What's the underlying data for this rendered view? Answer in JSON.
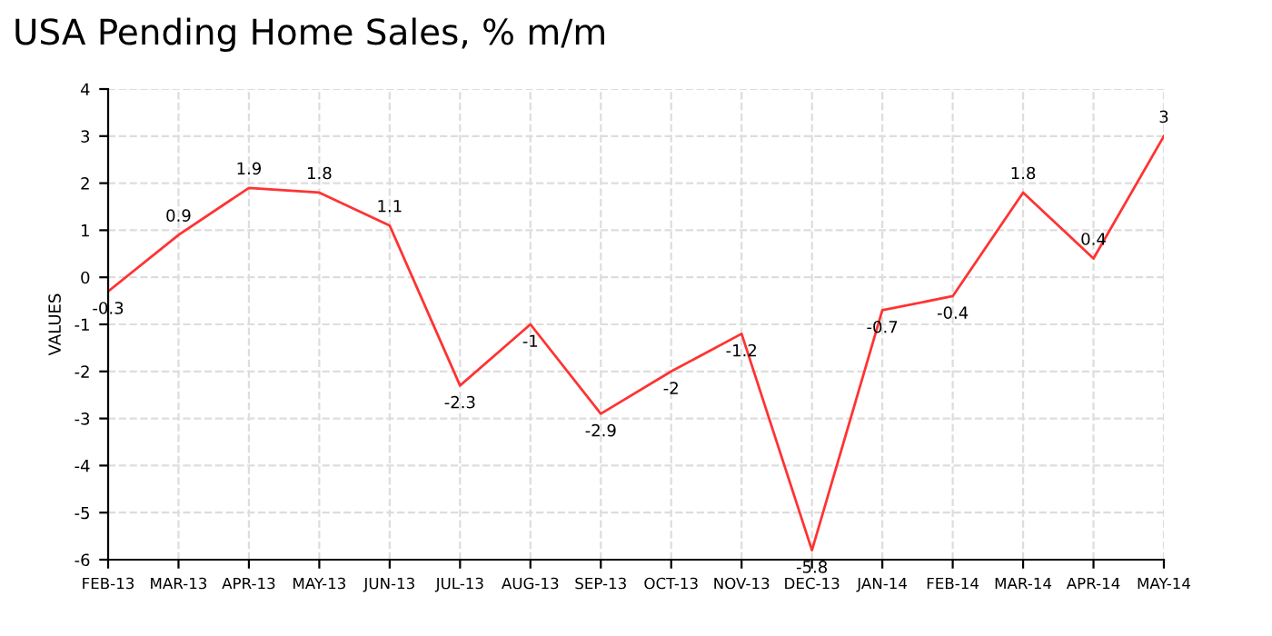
{
  "chart_data": {
    "type": "line",
    "title": "USA Pending Home Sales, % m/m",
    "ylabel": "VALUES",
    "categories": [
      "FEB-13",
      "MAR-13",
      "APR-13",
      "MAY-13",
      "JUN-13",
      "JUL-13",
      "AUG-13",
      "SEP-13",
      "OCT-13",
      "NOV-13",
      "DEC-13",
      "JAN-14",
      "FEB-14",
      "MAR-14",
      "APR-14",
      "MAY-14"
    ],
    "series": [
      {
        "color": "#ff3333",
        "values": [
          -0.3,
          0.9,
          1.9,
          1.8,
          1.1,
          -2.3,
          -1,
          -2.9,
          -2,
          -1.2,
          -5.8,
          -0.7,
          -0.4,
          1.8,
          0.4,
          3
        ]
      }
    ],
    "ylim": [
      -6,
      4
    ],
    "yticks": [
      -6,
      -5,
      -4,
      -3,
      -2,
      -1,
      0,
      1,
      2,
      3,
      4
    ],
    "grid": true,
    "data_labels": true,
    "marker": "none",
    "line_style": "solid"
  }
}
